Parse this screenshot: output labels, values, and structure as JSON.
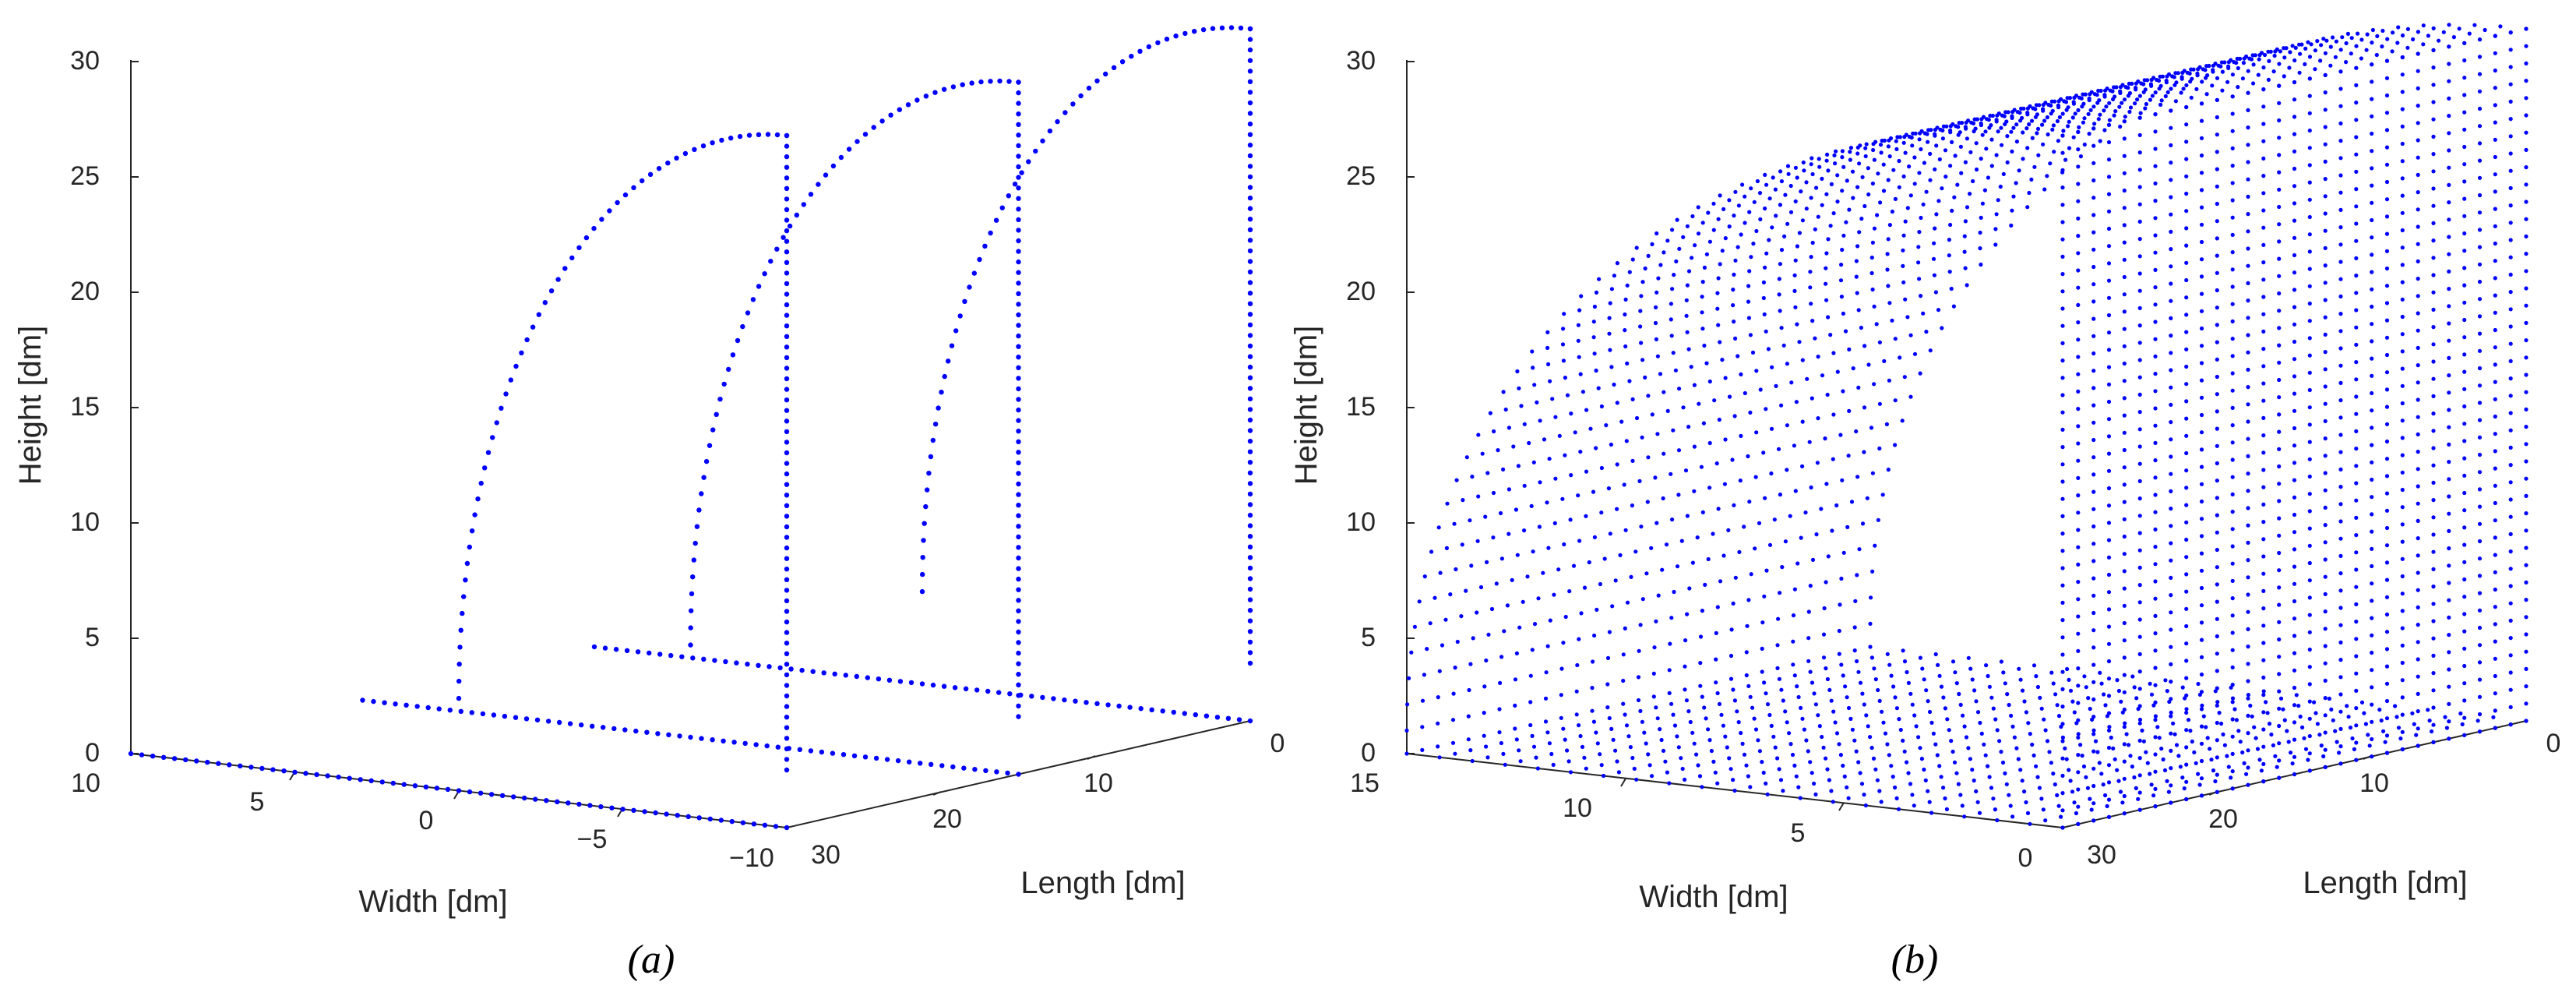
{
  "chart_data": [
    {
      "panel_label": "(a)",
      "type": "scatter3d",
      "xlabel": "Width [dm]",
      "ylabel": "Length [dm]",
      "zlabel": "Height [dm]",
      "xlim": [
        -10,
        10
      ],
      "ylim": [
        0,
        30
      ],
      "zlim": [
        0,
        30
      ],
      "x_ticks": [
        "10",
        "5",
        "0",
        "−5",
        "−10"
      ],
      "y_ticks": [
        "30",
        "20",
        "10",
        "0"
      ],
      "z_ticks": [
        "0",
        "5",
        "10",
        "15",
        "20",
        "25",
        "30"
      ],
      "marker_color": "#0000ff",
      "series": [
        {
          "slice_length": 30,
          "vertical_edge_width": -10,
          "arc_from_width": 0,
          "arc_top_height": 30
        },
        {
          "slice_length": 15,
          "vertical_edge_width": -10,
          "arc_from_width": 0,
          "arc_top_height": 30
        },
        {
          "slice_length": 0,
          "vertical_edge_width": -10,
          "arc_from_width": 0,
          "arc_top_height": 30
        }
      ]
    },
    {
      "panel_label": "(b)",
      "type": "scatter3d",
      "xlabel": "Width [dm]",
      "ylabel": "Length [dm]",
      "zlabel": "Height [dm]",
      "xlim": [
        0,
        15
      ],
      "ylim": [
        0,
        30
      ],
      "zlim": [
        0,
        30
      ],
      "x_ticks": [
        "15",
        "10",
        "5",
        "0"
      ],
      "y_ticks": [
        "30",
        "20",
        "10",
        "0"
      ],
      "z_ticks": [
        "0",
        "5",
        "10",
        "15",
        "20",
        "25",
        "30"
      ],
      "marker_color": "#0000ff",
      "surface": {
        "n_slices": 31,
        "shape": "quarter-round canopy with flat floor grid"
      }
    }
  ]
}
